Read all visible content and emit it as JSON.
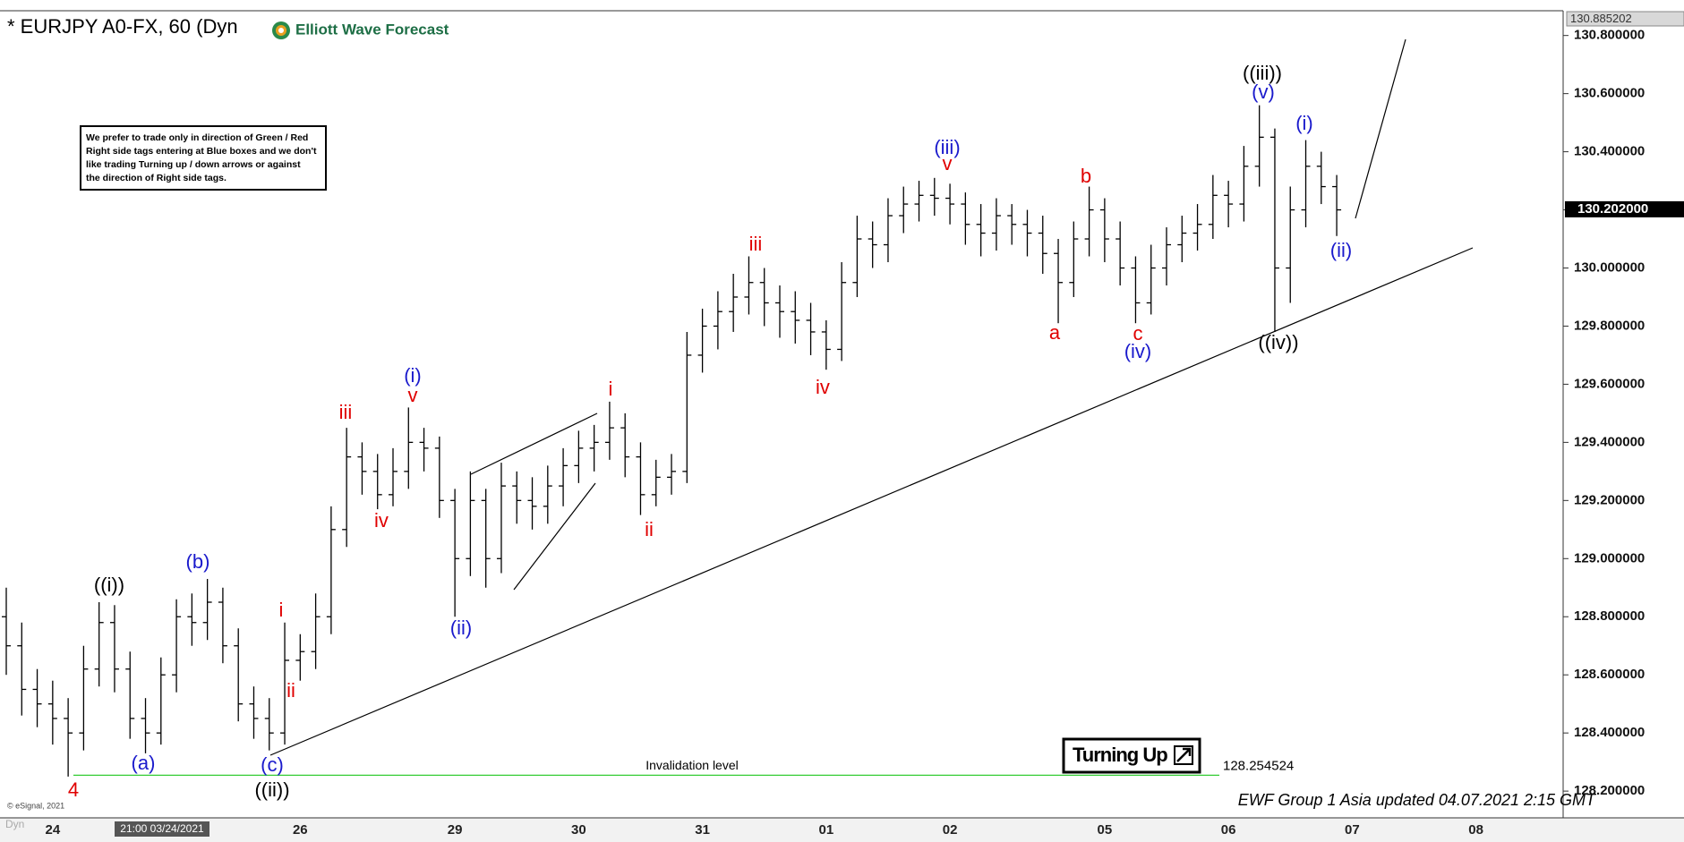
{
  "chart_data": {
    "type": "ohlc",
    "title": "* EURJPY A0-FX, 60 (Dyn",
    "logo": "Elliott Wave Forecast",
    "note": [
      "We prefer to trade only in direction of Green / Red",
      "Right side tags entering at Blue boxes and we don't",
      "like trading Turning up / down arrows or against",
      "the direction of Right side tags."
    ],
    "badge": "Turning Up",
    "footer": "EWF Group 1 Asia updated 04.07.2021 2:15 GMT",
    "copyright": "© eSignal, 2021",
    "corner_label": "Dyn",
    "cursor_label": "21:00 03/24/2021",
    "invalidation": {
      "label": "Invalidation level",
      "value": 128.254524,
      "color": "#33cc33"
    },
    "last_price": {
      "value": 130.202,
      "label": "130.202000"
    },
    "bar_color": "#000000",
    "ylim": [
      128.108,
      130.885202
    ],
    "yticks": [
      {
        "value": 128.2,
        "label": "128.200000"
      },
      {
        "value": 128.4,
        "label": "128.400000"
      },
      {
        "value": 128.6,
        "label": "128.600000"
      },
      {
        "value": 128.8,
        "label": "128.800000"
      },
      {
        "value": 129.0,
        "label": "129.000000"
      },
      {
        "value": 129.2,
        "label": "129.200000"
      },
      {
        "value": 129.4,
        "label": "129.400000"
      },
      {
        "value": 129.6,
        "label": "129.600000"
      },
      {
        "value": 129.8,
        "label": "129.800000"
      },
      {
        "value": 130.0,
        "label": "130.000000"
      },
      {
        "value": 130.2,
        "label": "130.200000"
      },
      {
        "value": 130.4,
        "label": "130.400000"
      },
      {
        "value": 130.6,
        "label": "130.600000"
      },
      {
        "value": 130.8,
        "label": "130.800000"
      }
    ],
    "categories": [
      null,
      null,
      null,
      "24",
      null,
      null,
      null,
      null,
      null,
      null,
      null,
      null,
      null,
      null,
      null,
      null,
      null,
      null,
      null,
      "26",
      null,
      null,
      null,
      null,
      null,
      null,
      null,
      null,
      null,
      "29",
      null,
      null,
      null,
      null,
      null,
      null,
      null,
      "30",
      null,
      null,
      null,
      null,
      null,
      null,
      null,
      "31",
      null,
      null,
      null,
      null,
      null,
      null,
      null,
      "01",
      null,
      null,
      null,
      null,
      null,
      null,
      null,
      "02",
      null,
      null,
      null,
      null,
      null,
      null,
      null,
      null,
      null,
      "05",
      null,
      null,
      null,
      null,
      null,
      null,
      null,
      "06",
      null,
      null,
      null,
      null,
      null,
      null,
      null,
      "07",
      null,
      null,
      null,
      null,
      null,
      null,
      null,
      "08",
      null,
      null,
      null,
      null,
      null
    ],
    "open": [
      128.8,
      128.7,
      128.55,
      128.5,
      128.45,
      128.4,
      128.62,
      128.78,
      128.62,
      128.45,
      128.4,
      128.6,
      128.8,
      128.78,
      128.85,
      128.7,
      128.5,
      128.45,
      128.4,
      128.65,
      128.68,
      128.8,
      129.1,
      129.35,
      129.3,
      129.22,
      129.3,
      129.4,
      129.38,
      129.2,
      129.0,
      129.2,
      129.0,
      129.25,
      129.2,
      129.18,
      129.25,
      129.32,
      129.38,
      129.4,
      129.45,
      129.35,
      129.22,
      129.28,
      129.3,
      129.7,
      129.8,
      129.85,
      129.9,
      129.95,
      129.88,
      129.85,
      129.82,
      129.78,
      129.72,
      129.95,
      130.1,
      130.08,
      130.18,
      130.22,
      130.25,
      130.24,
      130.22,
      130.15,
      130.12,
      130.18,
      130.15,
      130.12,
      130.05,
      129.95,
      130.1,
      130.2,
      130.1,
      130.0,
      129.88,
      130.0,
      130.08,
      130.12,
      130.15,
      130.25,
      130.22,
      130.35,
      130.45,
      130.0,
      130.2,
      130.35,
      130.28,
      null,
      null,
      null,
      null,
      null,
      null,
      null,
      null,
      null,
      null,
      null,
      null,
      null,
      null
    ],
    "high": [
      128.9,
      128.78,
      128.62,
      128.58,
      128.52,
      128.7,
      128.85,
      128.84,
      128.68,
      128.52,
      128.66,
      128.86,
      128.88,
      128.93,
      128.9,
      128.76,
      128.56,
      128.52,
      128.78,
      128.74,
      128.88,
      129.18,
      129.45,
      129.4,
      129.36,
      129.38,
      129.52,
      129.45,
      129.42,
      129.24,
      129.3,
      129.24,
      129.33,
      129.3,
      129.28,
      129.32,
      129.38,
      129.44,
      129.46,
      129.54,
      129.5,
      129.4,
      129.34,
      129.36,
      129.78,
      129.86,
      129.92,
      129.98,
      130.04,
      130.0,
      129.94,
      129.92,
      129.88,
      129.82,
      130.02,
      130.18,
      130.16,
      130.24,
      130.28,
      130.3,
      130.31,
      130.29,
      130.26,
      130.22,
      130.24,
      130.22,
      130.2,
      130.18,
      130.1,
      130.16,
      130.28,
      130.24,
      130.16,
      130.04,
      130.08,
      130.14,
      130.18,
      130.22,
      130.32,
      130.3,
      130.42,
      130.56,
      130.48,
      130.28,
      130.44,
      130.4,
      130.32,
      null,
      null,
      null,
      null,
      null,
      null,
      null,
      null,
      null,
      null,
      null,
      null,
      null,
      null
    ],
    "low": [
      128.6,
      128.46,
      128.42,
      128.36,
      128.25,
      128.34,
      128.56,
      128.54,
      128.38,
      128.33,
      128.36,
      128.54,
      128.7,
      128.72,
      128.64,
      128.44,
      128.38,
      128.34,
      128.36,
      128.58,
      128.62,
      128.74,
      129.04,
      129.22,
      129.17,
      129.18,
      129.24,
      129.3,
      129.14,
      128.8,
      128.94,
      128.9,
      128.95,
      129.12,
      129.1,
      129.12,
      129.18,
      129.26,
      129.3,
      129.34,
      129.28,
      129.15,
      129.18,
      129.22,
      129.26,
      129.64,
      129.72,
      129.78,
      129.84,
      129.8,
      129.76,
      129.74,
      129.7,
      129.65,
      129.68,
      129.9,
      130.0,
      130.02,
      130.12,
      130.16,
      130.18,
      130.15,
      130.08,
      130.04,
      130.06,
      130.08,
      130.04,
      129.98,
      129.81,
      129.9,
      130.04,
      130.02,
      129.94,
      129.81,
      129.84,
      129.94,
      130.02,
      130.06,
      130.1,
      130.14,
      130.16,
      130.28,
      129.78,
      129.88,
      130.14,
      130.22,
      130.11,
      null,
      null,
      null,
      null,
      null,
      null,
      null,
      null,
      null,
      null,
      null,
      null,
      null,
      null
    ],
    "close": [
      128.7,
      128.55,
      128.5,
      128.45,
      128.4,
      128.62,
      128.78,
      128.62,
      128.45,
      128.4,
      128.6,
      128.8,
      128.78,
      128.85,
      128.7,
      128.5,
      128.45,
      128.4,
      128.65,
      128.68,
      128.8,
      129.1,
      129.35,
      129.3,
      129.22,
      129.3,
      129.4,
      129.38,
      129.2,
      129.0,
      129.2,
      129.0,
      129.25,
      129.2,
      129.18,
      129.25,
      129.32,
      129.38,
      129.4,
      129.45,
      129.35,
      129.22,
      129.28,
      129.3,
      129.7,
      129.8,
      129.85,
      129.9,
      129.95,
      129.88,
      129.85,
      129.82,
      129.78,
      129.72,
      129.95,
      130.1,
      130.08,
      130.18,
      130.22,
      130.25,
      130.24,
      130.22,
      130.15,
      130.12,
      130.18,
      130.15,
      130.12,
      130.05,
      129.95,
      130.1,
      130.2,
      130.1,
      130.0,
      129.88,
      130.0,
      130.08,
      130.12,
      130.15,
      130.25,
      130.22,
      130.35,
      130.45,
      130.0,
      130.2,
      130.35,
      130.28,
      130.2,
      null,
      null,
      null,
      null,
      null,
      null,
      null,
      null,
      null,
      null,
      null,
      null,
      null,
      null
    ],
    "wave_labels": [
      {
        "text": "4",
        "color": "#e00000"
      },
      {
        "text": "((i))",
        "color": "#000000"
      },
      {
        "text": "(a)",
        "color": "#1a1acc"
      },
      {
        "text": "(b)",
        "color": "#1a1acc"
      },
      {
        "text": "(c)",
        "color": "#1a1acc"
      },
      {
        "text": "((ii))",
        "color": "#000000"
      },
      {
        "text": "i",
        "color": "#e00000"
      },
      {
        "text": "ii",
        "color": "#e00000"
      },
      {
        "text": "iii",
        "color": "#e00000"
      },
      {
        "text": "iv",
        "color": "#e00000"
      },
      {
        "text": "(i)",
        "color": "#1a1acc"
      },
      {
        "text": "v",
        "color": "#e00000"
      },
      {
        "text": "(ii)",
        "color": "#1a1acc"
      },
      {
        "text": "i",
        "color": "#e00000"
      },
      {
        "text": "ii",
        "color": "#e00000"
      },
      {
        "text": "iii",
        "color": "#e00000"
      },
      {
        "text": "iv",
        "color": "#e00000"
      },
      {
        "text": "(iii)",
        "color": "#1a1acc"
      },
      {
        "text": "v",
        "color": "#e00000"
      },
      {
        "text": "a",
        "color": "#e00000"
      },
      {
        "text": "b",
        "color": "#e00000"
      },
      {
        "text": "c",
        "color": "#e00000"
      },
      {
        "text": "(iv)",
        "color": "#1a1acc"
      },
      {
        "text": "((iii))",
        "color": "#000000"
      },
      {
        "text": "(v)",
        "color": "#1a1acc"
      },
      {
        "text": "((iv))",
        "color": "#000000"
      },
      {
        "text": "(i)",
        "color": "#1a1acc"
      },
      {
        "text": "(ii)",
        "color": "#1a1acc"
      }
    ]
  }
}
